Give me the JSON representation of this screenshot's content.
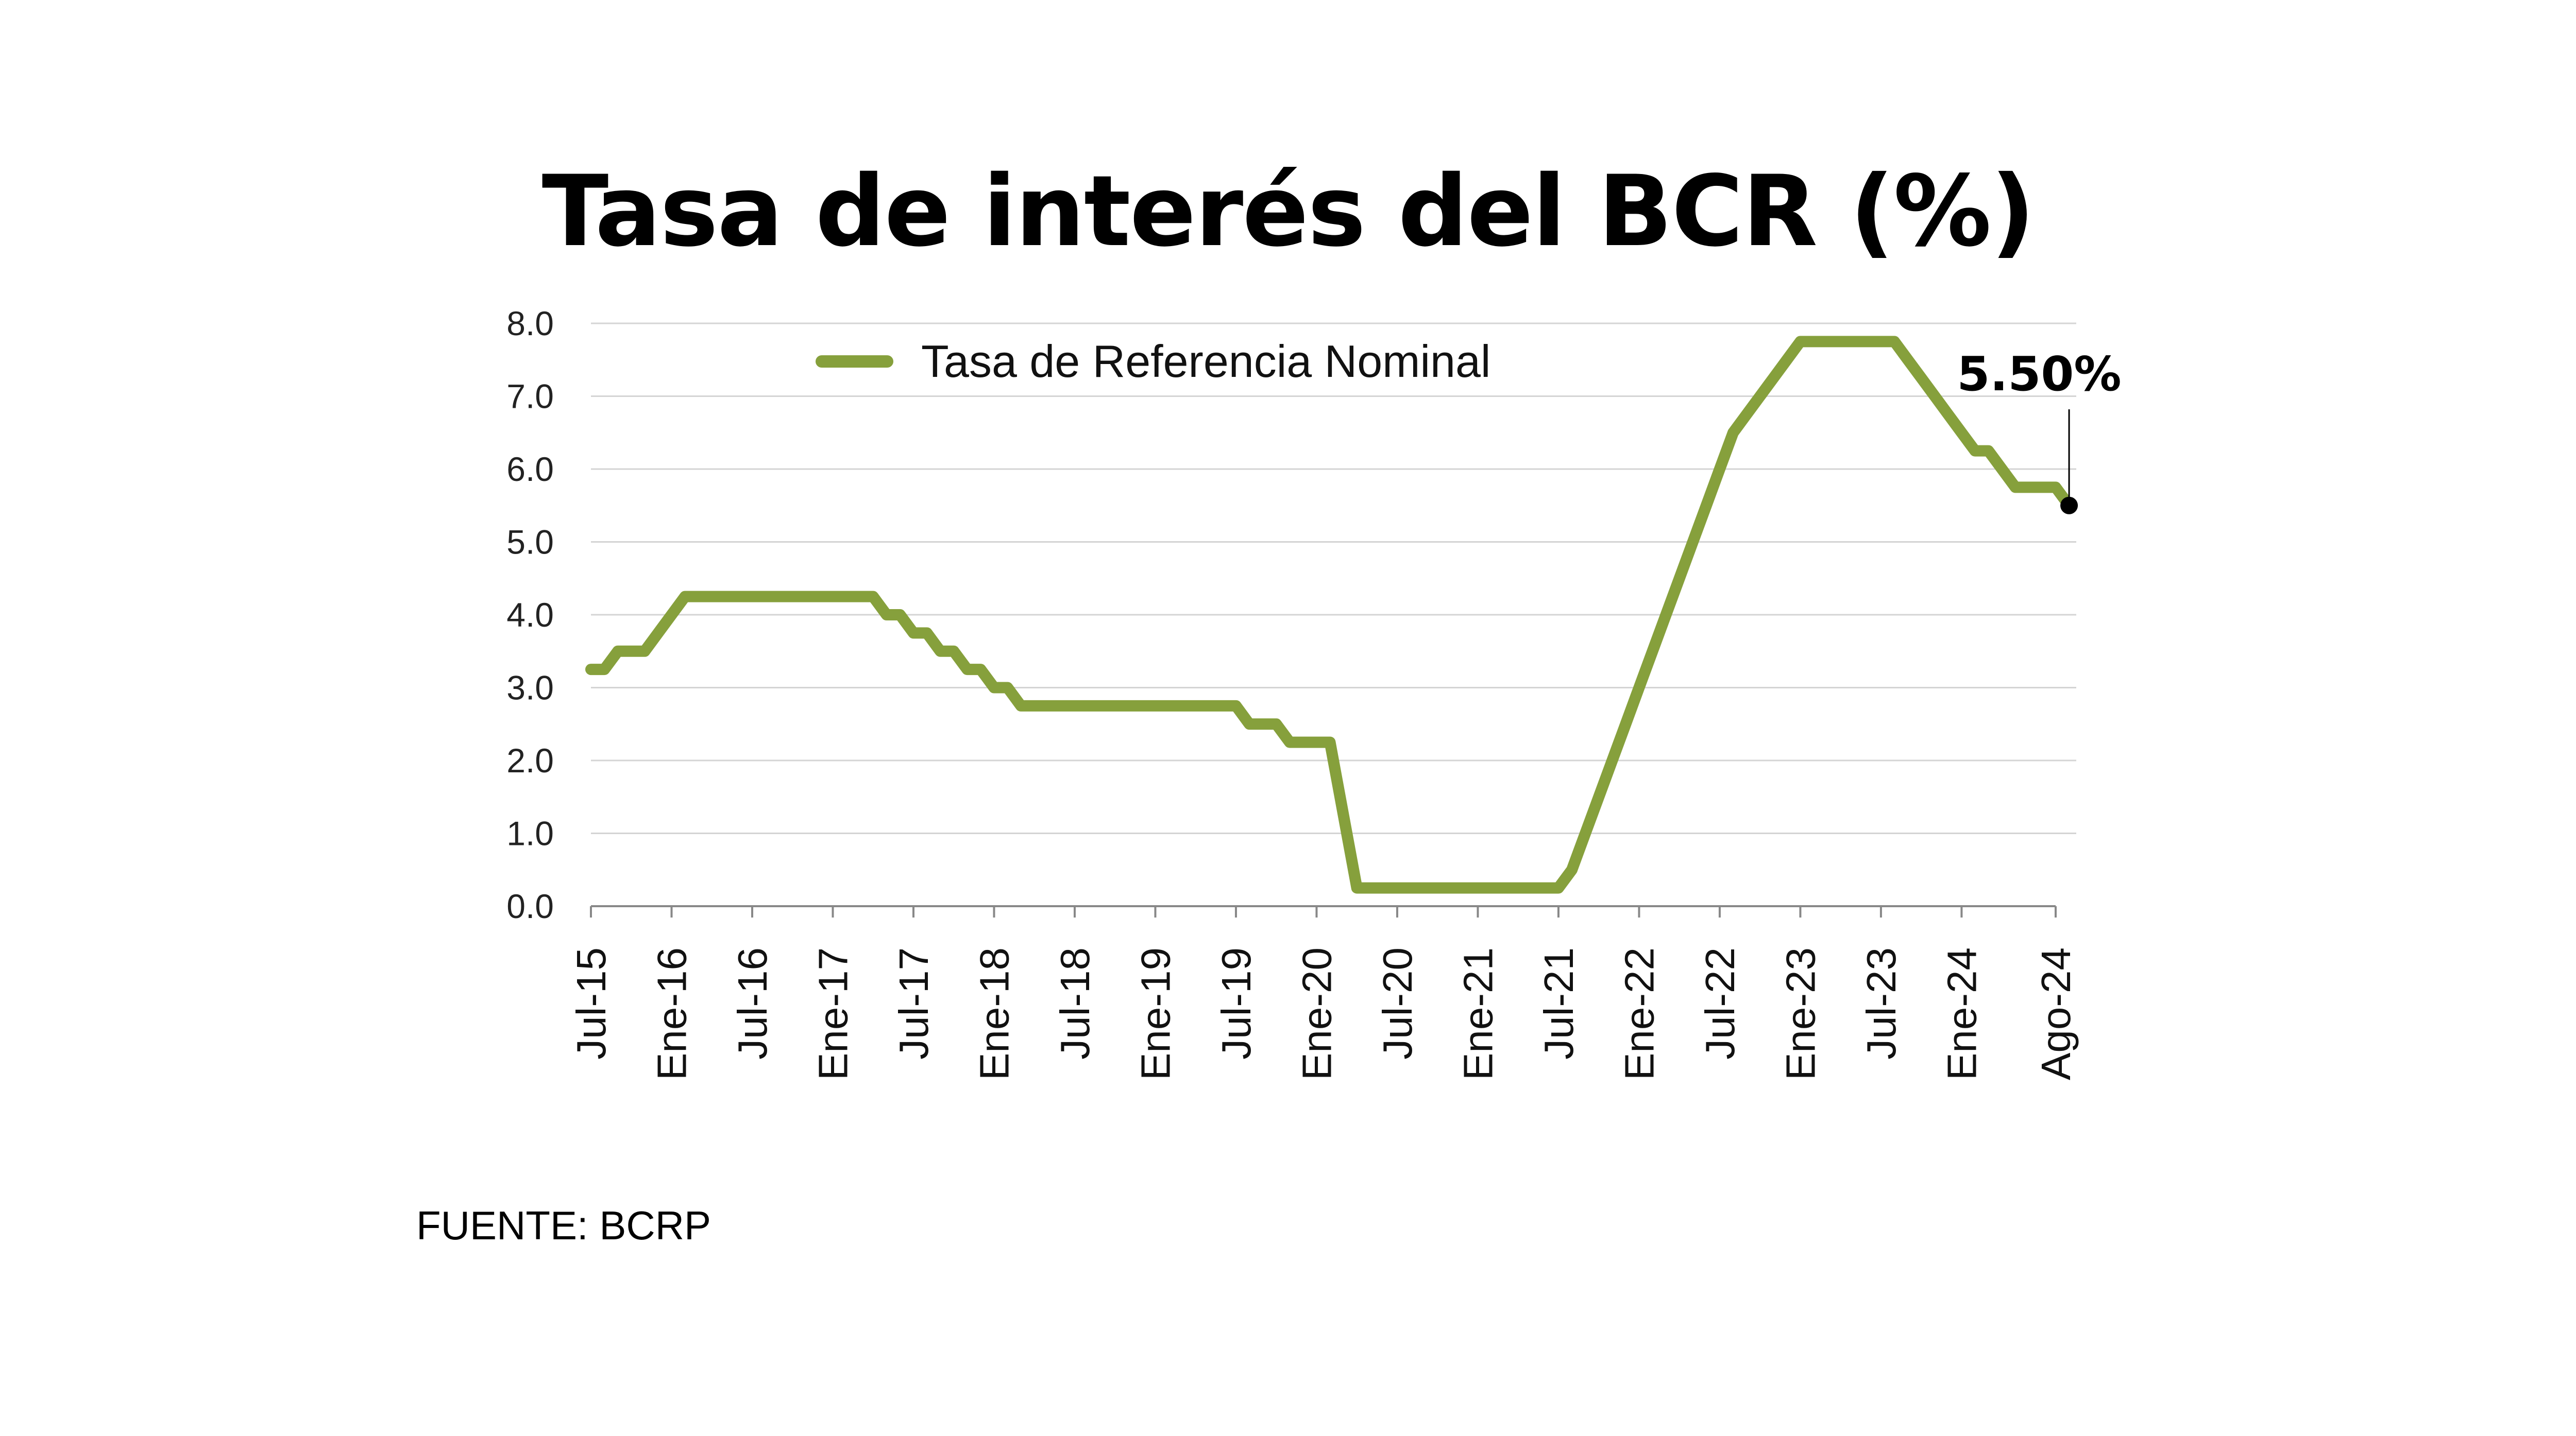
{
  "title": "Tasa de interés del BCR (%)",
  "source": "FUENTE: BCRP",
  "chart_data": {
    "type": "line",
    "title": "Tasa de interés del BCR (%)",
    "xlabel": "",
    "ylabel": "",
    "ylim": [
      0,
      8
    ],
    "yticks": [
      "0.0",
      "1.0",
      "2.0",
      "3.0",
      "4.0",
      "5.0",
      "6.0",
      "7.0",
      "8.0"
    ],
    "grid": true,
    "legend_placement": "top-left",
    "colors": {
      "series": "#86a03c",
      "marker": "#000000",
      "grid": "#d4d4d4"
    },
    "xticks": [
      {
        "date": "2015-07",
        "label": "Jul-15"
      },
      {
        "date": "2016-01",
        "label": "Ene-16"
      },
      {
        "date": "2016-07",
        "label": "Jul-16"
      },
      {
        "date": "2017-01",
        "label": "Ene-17"
      },
      {
        "date": "2017-07",
        "label": "Jul-17"
      },
      {
        "date": "2018-01",
        "label": "Ene-18"
      },
      {
        "date": "2018-07",
        "label": "Jul-18"
      },
      {
        "date": "2019-01",
        "label": "Ene-19"
      },
      {
        "date": "2019-07",
        "label": "Jul-19"
      },
      {
        "date": "2020-01",
        "label": "Ene-20"
      },
      {
        "date": "2020-07",
        "label": "Jul-20"
      },
      {
        "date": "2021-01",
        "label": "Ene-21"
      },
      {
        "date": "2021-07",
        "label": "Jul-21"
      },
      {
        "date": "2022-01",
        "label": "Ene-22"
      },
      {
        "date": "2022-07",
        "label": "Jul-22"
      },
      {
        "date": "2023-01",
        "label": "Ene-23"
      },
      {
        "date": "2023-07",
        "label": "Jul-23"
      },
      {
        "date": "2024-01",
        "label": "Ene-24"
      },
      {
        "date": "2024-08",
        "label": "Ago-24"
      }
    ],
    "series": [
      {
        "name": "Tasa de Referencia Nominal",
        "start": "2015-07",
        "values": [
          3.25,
          3.25,
          3.5,
          3.5,
          3.5,
          3.75,
          4.0,
          4.25,
          4.25,
          4.25,
          4.25,
          4.25,
          4.25,
          4.25,
          4.25,
          4.25,
          4.25,
          4.25,
          4.25,
          4.25,
          4.25,
          4.25,
          4.0,
          4.0,
          3.75,
          3.75,
          3.5,
          3.5,
          3.25,
          3.25,
          3.0,
          3.0,
          2.75,
          2.75,
          2.75,
          2.75,
          2.75,
          2.75,
          2.75,
          2.75,
          2.75,
          2.75,
          2.75,
          2.75,
          2.75,
          2.75,
          2.75,
          2.75,
          2.75,
          2.5,
          2.5,
          2.5,
          2.25,
          2.25,
          2.25,
          2.25,
          1.25,
          0.25,
          0.25,
          0.25,
          0.25,
          0.25,
          0.25,
          0.25,
          0.25,
          0.25,
          0.25,
          0.25,
          0.25,
          0.25,
          0.25,
          0.25,
          0.25,
          0.5,
          1.0,
          1.5,
          2.0,
          2.5,
          3.0,
          3.5,
          4.0,
          4.5,
          5.0,
          5.5,
          6.0,
          6.5,
          6.75,
          7.0,
          7.25,
          7.5,
          7.75,
          7.75,
          7.75,
          7.75,
          7.75,
          7.75,
          7.75,
          7.75,
          7.5,
          7.25,
          7.0,
          6.75,
          6.5,
          6.25,
          6.25,
          6.0,
          5.75,
          5.75,
          5.75,
          5.75,
          5.5
        ]
      }
    ],
    "annotation": {
      "label": "5.50%",
      "date": "2024-09",
      "value": 5.5
    }
  }
}
